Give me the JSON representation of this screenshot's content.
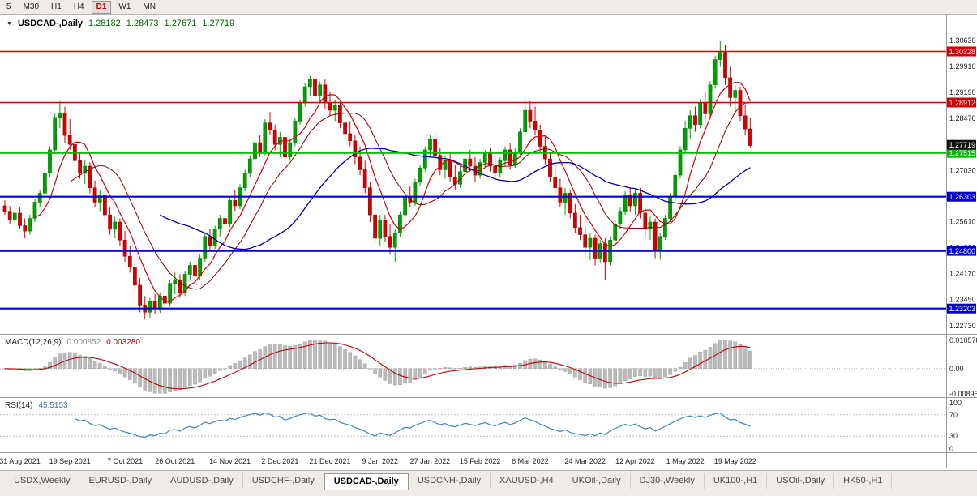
{
  "toolbar": {
    "periods": [
      {
        "label": "5",
        "active": false
      },
      {
        "label": "M30",
        "active": false
      },
      {
        "label": "H1",
        "active": false
      },
      {
        "label": "H4",
        "active": false
      },
      {
        "label": "D1",
        "active": true
      },
      {
        "label": "W1",
        "active": false
      },
      {
        "label": "MN",
        "active": false
      }
    ]
  },
  "chart_header": {
    "dropdown_icon": "▼",
    "symbol": "USDCAD-,Daily",
    "open": "1.28182",
    "high": "1.28473",
    "low": "1.27671",
    "close": "1.27719"
  },
  "macd_panel": {
    "title": "MACD(12,26,9)",
    "main_value": "0.000852",
    "signal_value": "0.003280"
  },
  "rsi_panel": {
    "title": "RSI(14)",
    "value": "45.5153"
  },
  "tabs": [
    {
      "label": "USDX,Weekly",
      "active": false
    },
    {
      "label": "EURUSD-,Daily",
      "active": false
    },
    {
      "label": "AUDUSD-,Daily",
      "active": false
    },
    {
      "label": "USDCHF-,Daily",
      "active": false
    },
    {
      "label": "USDCAD-,Daily",
      "active": true
    },
    {
      "label": "USDCNH-,Daily",
      "active": false
    },
    {
      "label": "XAUUSD-,H4",
      "active": false
    },
    {
      "label": "UKOil-,Daily",
      "active": false
    },
    {
      "label": "DJ30-,Weekly",
      "active": false
    },
    {
      "label": "UK100-,H1",
      "active": false
    },
    {
      "label": "USOil-,Daily",
      "active": false
    },
    {
      "label": "HK50-,H1",
      "active": false
    }
  ],
  "chart_data": {
    "type": "candlestick",
    "symbol": "USDCAD-,Daily",
    "ylim": [
      1.225,
      1.3135
    ],
    "colors": {
      "up": "#00A000",
      "up_stroke": "#007000",
      "down": "#D40000",
      "down_stroke": "#900000"
    },
    "candles": [
      [
        1.2605,
        1.262,
        1.258,
        1.259
      ],
      [
        1.259,
        1.2605,
        1.2555,
        1.2565
      ],
      [
        1.2565,
        1.2595,
        1.255,
        1.2585
      ],
      [
        1.2585,
        1.26,
        1.254,
        1.255
      ],
      [
        1.255,
        1.257,
        1.2515,
        1.2535
      ],
      [
        1.2535,
        1.258,
        1.2525,
        1.257
      ],
      [
        1.257,
        1.2625,
        1.256,
        1.2615
      ],
      [
        1.2615,
        1.265,
        1.26,
        1.264
      ],
      [
        1.264,
        1.2705,
        1.263,
        1.2695
      ],
      [
        1.2695,
        1.277,
        1.2685,
        1.276
      ],
      [
        1.276,
        1.286,
        1.275,
        1.285
      ],
      [
        1.285,
        1.2895,
        1.282,
        1.286
      ],
      [
        1.286,
        1.288,
        1.278,
        1.28
      ],
      [
        1.28,
        1.2845,
        1.276,
        1.2775
      ],
      [
        1.2775,
        1.2805,
        1.2715,
        1.273
      ],
      [
        1.273,
        1.2755,
        1.268,
        1.2695
      ],
      [
        1.2695,
        1.273,
        1.2665,
        1.2715
      ],
      [
        1.2715,
        1.2725,
        1.264,
        1.2655
      ],
      [
        1.2655,
        1.2675,
        1.26,
        1.2615
      ],
      [
        1.2615,
        1.265,
        1.259,
        1.2635
      ],
      [
        1.2635,
        1.2645,
        1.2565,
        1.258
      ],
      [
        1.258,
        1.26,
        1.2525,
        1.254
      ],
      [
        1.254,
        1.2575,
        1.2515,
        1.256
      ],
      [
        1.256,
        1.257,
        1.2495,
        1.251
      ],
      [
        1.251,
        1.2535,
        1.245,
        1.2465
      ],
      [
        1.2465,
        1.2495,
        1.242,
        1.2435
      ],
      [
        1.2435,
        1.246,
        1.237,
        1.2385
      ],
      [
        1.2385,
        1.2405,
        1.231,
        1.233
      ],
      [
        1.233,
        1.2355,
        1.229,
        1.231
      ],
      [
        1.231,
        1.235,
        1.2295,
        1.234
      ],
      [
        1.234,
        1.236,
        1.2305,
        1.232
      ],
      [
        1.232,
        1.2365,
        1.2308,
        1.2355
      ],
      [
        1.2355,
        1.239,
        1.2315,
        1.2335
      ],
      [
        1.2335,
        1.24,
        1.2325,
        1.239
      ],
      [
        1.239,
        1.242,
        1.236,
        1.24
      ],
      [
        1.24,
        1.2415,
        1.235,
        1.2365
      ],
      [
        1.2365,
        1.2425,
        1.2355,
        1.2415
      ],
      [
        1.2415,
        1.245,
        1.24,
        1.244
      ],
      [
        1.244,
        1.2455,
        1.2395,
        1.241
      ],
      [
        1.241,
        1.247,
        1.24,
        1.246
      ],
      [
        1.246,
        1.253,
        1.245,
        1.252
      ],
      [
        1.252,
        1.254,
        1.248,
        1.2495
      ],
      [
        1.2495,
        1.255,
        1.2485,
        1.254
      ],
      [
        1.254,
        1.258,
        1.252,
        1.257
      ],
      [
        1.257,
        1.259,
        1.254,
        1.2555
      ],
      [
        1.2555,
        1.263,
        1.2545,
        1.262
      ],
      [
        1.262,
        1.265,
        1.259,
        1.2605
      ],
      [
        1.2605,
        1.2665,
        1.2595,
        1.2655
      ],
      [
        1.2655,
        1.2705,
        1.2645,
        1.2695
      ],
      [
        1.2695,
        1.2745,
        1.2685,
        1.2735
      ],
      [
        1.2735,
        1.279,
        1.2725,
        1.278
      ],
      [
        1.278,
        1.28,
        1.274,
        1.2755
      ],
      [
        1.2755,
        1.2845,
        1.2745,
        1.2835
      ],
      [
        1.2835,
        1.2865,
        1.28,
        1.2815
      ],
      [
        1.2815,
        1.283,
        1.276,
        1.2775
      ],
      [
        1.2775,
        1.281,
        1.274,
        1.2795
      ],
      [
        1.2795,
        1.28,
        1.272,
        1.274
      ],
      [
        1.274,
        1.279,
        1.273,
        1.278
      ],
      [
        1.278,
        1.285,
        1.277,
        1.284
      ],
      [
        1.284,
        1.29,
        1.283,
        1.289
      ],
      [
        1.289,
        1.2945,
        1.288,
        1.2935
      ],
      [
        1.2935,
        1.2965,
        1.291,
        1.2955
      ],
      [
        1.2955,
        1.296,
        1.2895,
        1.291
      ],
      [
        1.291,
        1.295,
        1.289,
        1.294
      ],
      [
        1.294,
        1.2955,
        1.2875,
        1.289
      ],
      [
        1.289,
        1.292,
        1.2855,
        1.287
      ],
      [
        1.287,
        1.29,
        1.284,
        1.2885
      ],
      [
        1.2885,
        1.2895,
        1.282,
        1.2835
      ],
      [
        1.2835,
        1.286,
        1.279,
        1.2805
      ],
      [
        1.2805,
        1.284,
        1.277,
        1.2785
      ],
      [
        1.2785,
        1.28,
        1.272,
        1.274
      ],
      [
        1.274,
        1.277,
        1.269,
        1.2705
      ],
      [
        1.2705,
        1.273,
        1.264,
        1.2655
      ],
      [
        1.2655,
        1.267,
        1.256,
        1.258
      ],
      [
        1.258,
        1.262,
        1.25,
        1.2515
      ],
      [
        1.2515,
        1.258,
        1.2495,
        1.2565
      ],
      [
        1.2565,
        1.258,
        1.2505,
        1.252
      ],
      [
        1.252,
        1.2555,
        1.247,
        1.249
      ],
      [
        1.249,
        1.254,
        1.245,
        1.253
      ],
      [
        1.253,
        1.259,
        1.252,
        1.258
      ],
      [
        1.258,
        1.264,
        1.257,
        1.263
      ],
      [
        1.263,
        1.266,
        1.26,
        1.2615
      ],
      [
        1.2615,
        1.268,
        1.2605,
        1.267
      ],
      [
        1.267,
        1.272,
        1.266,
        1.271
      ],
      [
        1.271,
        1.277,
        1.27,
        1.276
      ],
      [
        1.276,
        1.28,
        1.2745,
        1.279
      ],
      [
        1.279,
        1.281,
        1.273,
        1.2745
      ],
      [
        1.2745,
        1.2765,
        1.269,
        1.2705
      ],
      [
        1.2705,
        1.2745,
        1.268,
        1.273
      ],
      [
        1.273,
        1.275,
        1.267,
        1.2685
      ],
      [
        1.2685,
        1.272,
        1.265,
        1.2665
      ],
      [
        1.2665,
        1.2715,
        1.2655,
        1.27
      ],
      [
        1.27,
        1.2745,
        1.269,
        1.2735
      ],
      [
        1.2735,
        1.276,
        1.27,
        1.2715
      ],
      [
        1.2715,
        1.274,
        1.267,
        1.269
      ],
      [
        1.269,
        1.2735,
        1.268,
        1.2725
      ],
      [
        1.2725,
        1.276,
        1.271,
        1.275
      ],
      [
        1.275,
        1.2765,
        1.27,
        1.2715
      ],
      [
        1.2715,
        1.2745,
        1.268,
        1.2695
      ],
      [
        1.2695,
        1.274,
        1.2685,
        1.273
      ],
      [
        1.273,
        1.277,
        1.2715,
        1.276
      ],
      [
        1.276,
        1.278,
        1.2705,
        1.272
      ],
      [
        1.272,
        1.2765,
        1.271,
        1.2755
      ],
      [
        1.2755,
        1.282,
        1.2745,
        1.281
      ],
      [
        1.281,
        1.29,
        1.28,
        1.287
      ],
      [
        1.287,
        1.2895,
        1.282,
        1.284
      ],
      [
        1.284,
        1.288,
        1.28,
        1.2815
      ],
      [
        1.2815,
        1.283,
        1.275,
        1.277
      ],
      [
        1.277,
        1.28,
        1.272,
        1.2735
      ],
      [
        1.2735,
        1.275,
        1.267,
        1.2685
      ],
      [
        1.2685,
        1.272,
        1.264,
        1.2655
      ],
      [
        1.2655,
        1.268,
        1.26,
        1.2615
      ],
      [
        1.2615,
        1.2655,
        1.258,
        1.264
      ],
      [
        1.264,
        1.265,
        1.257,
        1.2585
      ],
      [
        1.2585,
        1.261,
        1.253,
        1.2545
      ],
      [
        1.2545,
        1.258,
        1.251,
        1.2525
      ],
      [
        1.2525,
        1.255,
        1.247,
        1.249
      ],
      [
        1.249,
        1.253,
        1.2455,
        1.2515
      ],
      [
        1.2515,
        1.2525,
        1.244,
        1.246
      ],
      [
        1.246,
        1.251,
        1.2445,
        1.25
      ],
      [
        1.25,
        1.2515,
        1.24,
        1.245
      ],
      [
        1.245,
        1.252,
        1.244,
        1.251
      ],
      [
        1.251,
        1.2565,
        1.25,
        1.2555
      ],
      [
        1.2555,
        1.26,
        1.254,
        1.259
      ],
      [
        1.259,
        1.2645,
        1.258,
        1.2635
      ],
      [
        1.2635,
        1.2655,
        1.259,
        1.2605
      ],
      [
        1.2605,
        1.265,
        1.258,
        1.264
      ],
      [
        1.264,
        1.2655,
        1.257,
        1.2585
      ],
      [
        1.2585,
        1.26,
        1.252,
        1.254
      ],
      [
        1.254,
        1.2575,
        1.251,
        1.256
      ],
      [
        1.256,
        1.257,
        1.246,
        1.248
      ],
      [
        1.248,
        1.253,
        1.2455,
        1.252
      ],
      [
        1.252,
        1.258,
        1.251,
        1.257
      ],
      [
        1.257,
        1.264,
        1.256,
        1.263
      ],
      [
        1.263,
        1.27,
        1.262,
        1.269
      ],
      [
        1.269,
        1.277,
        1.268,
        1.276
      ],
      [
        1.276,
        1.284,
        1.275,
        1.282
      ],
      [
        1.282,
        1.287,
        1.279,
        1.2855
      ],
      [
        1.2855,
        1.288,
        1.281,
        1.283
      ],
      [
        1.283,
        1.29,
        1.282,
        1.289
      ],
      [
        1.289,
        1.292,
        1.284,
        1.286
      ],
      [
        1.286,
        1.295,
        1.285,
        1.294
      ],
      [
        1.294,
        1.302,
        1.293,
        1.301
      ],
      [
        1.301,
        1.3063,
        1.299,
        1.303
      ],
      [
        1.303,
        1.305,
        1.294,
        1.296
      ],
      [
        1.296,
        1.299,
        1.288,
        1.2905
      ],
      [
        1.2905,
        1.294,
        1.286,
        1.2925
      ],
      [
        1.2925,
        1.2935,
        1.284,
        1.2855
      ],
      [
        1.2855,
        1.2885,
        1.28,
        1.2818
      ],
      [
        1.28182,
        1.28473,
        1.27671,
        1.27719
      ]
    ],
    "ma": [
      {
        "period": 7,
        "color": "#D40000",
        "width": 1.2,
        "name": "ma-fast-red"
      },
      {
        "period": 14,
        "color": "#8B0000",
        "width": 1,
        "name": "ma-mid-darkred"
      },
      {
        "period": 32,
        "color": "#0000A0",
        "width": 1.3,
        "name": "ma-slow-blue"
      }
    ],
    "price_ticks": [
      {
        "v": 1.3063,
        "label": "1.30630"
      },
      {
        "v": 1.2991,
        "label": "1.29910"
      },
      {
        "v": 1.2919,
        "label": "1.29190"
      },
      {
        "v": 1.2847,
        "label": "1.28470"
      },
      {
        "v": 1.2775,
        "label": "1.27750"
      },
      {
        "v": 1.2703,
        "label": "1.27030"
      },
      {
        "v": 1.2631,
        "label": "1.26310"
      },
      {
        "v": 1.2561,
        "label": "1.25610"
      },
      {
        "v": 1.2489,
        "label": "1.24890"
      },
      {
        "v": 1.2417,
        "label": "1.24170"
      },
      {
        "v": 1.2345,
        "label": "1.23450"
      },
      {
        "v": 1.2273,
        "label": "1.22730"
      }
    ],
    "levels": [
      {
        "v": 1.30328,
        "label": "1.30328",
        "color": "#D40000",
        "width": 1.6
      },
      {
        "v": 1.28912,
        "label": "1.28912",
        "color": "#D40000",
        "width": 1.6
      },
      {
        "v": 1.27515,
        "label": "1.27515",
        "color": "#00BB00",
        "width": 2.2
      },
      {
        "v": 1.26303,
        "label": "1.26303",
        "color": "#0000C8",
        "width": 2.2
      },
      {
        "v": 1.248,
        "label": "1.24800",
        "color": "#0000C8",
        "width": 2.2
      },
      {
        "v": 1.23203,
        "label": "1.23203",
        "color": "#0000C8",
        "width": 2.2
      }
    ],
    "current_price": {
      "v": 1.27719,
      "label": "1.27719",
      "color": "#111111"
    },
    "macd": {
      "fast": 12,
      "slow": 26,
      "signal": 9,
      "hist_color": "#BBBBBB",
      "hist_stroke": "#999999",
      "signal_color": "#C00000",
      "axis_labels": [
        "0.010578",
        "0.00",
        "-0.00896"
      ]
    },
    "rsi": {
      "period": 14,
      "color": "#3A87C8",
      "levels": [
        {
          "v": 100,
          "label": "100"
        },
        {
          "v": 70,
          "label": "70"
        },
        {
          "v": 30,
          "label": "30"
        },
        {
          "v": 0,
          "label": "0"
        }
      ]
    },
    "dates": [
      {
        "i": 3,
        "label": "31 Aug 2021"
      },
      {
        "i": 13,
        "label": "19 Sep 2021"
      },
      {
        "i": 24,
        "label": "7 Oct 2021"
      },
      {
        "i": 34,
        "label": "26 Oct 2021"
      },
      {
        "i": 45,
        "label": "14 Nov 2021"
      },
      {
        "i": 55,
        "label": "2 Dec 2021"
      },
      {
        "i": 65,
        "label": "21 Dec 2021"
      },
      {
        "i": 75,
        "label": "9 Jan 2022"
      },
      {
        "i": 85,
        "label": "27 Jan 2022"
      },
      {
        "i": 95,
        "label": "15 Feb 2022"
      },
      {
        "i": 105,
        "label": "6 Mar 2022"
      },
      {
        "i": 116,
        "label": "24 Mar 2022"
      },
      {
        "i": 126,
        "label": "12 Apr 2022"
      },
      {
        "i": 136,
        "label": "1 May 2022"
      },
      {
        "i": 146,
        "label": "19 May 2022"
      }
    ]
  }
}
